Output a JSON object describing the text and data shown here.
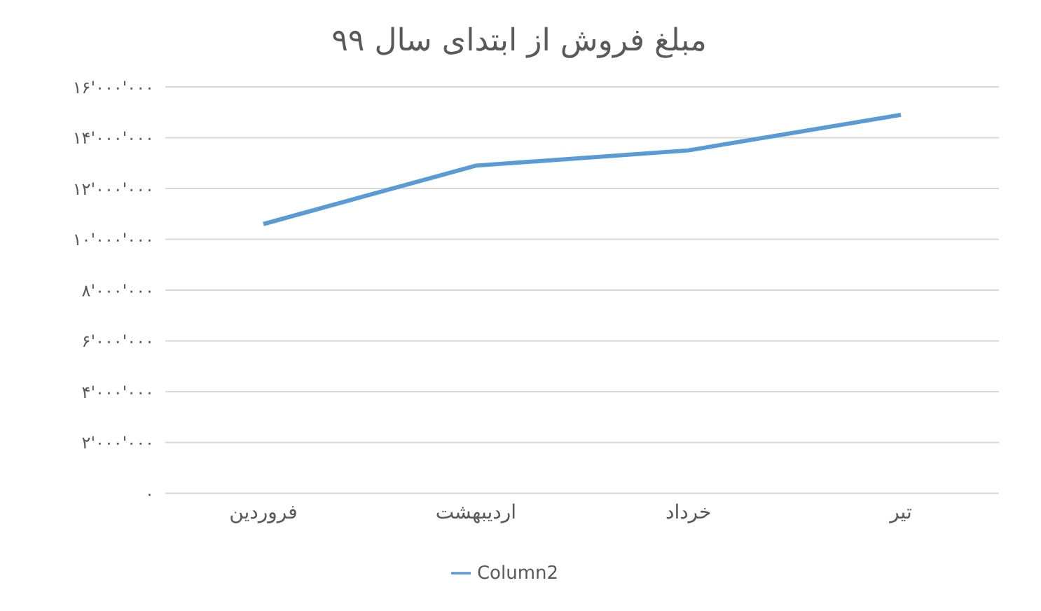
{
  "chart_data": {
    "type": "line",
    "title": "مبلغ فروش از ابتدای سال ۹۹",
    "categories": [
      "فروردین",
      "اردیبهشت",
      "خرداد",
      "تیر"
    ],
    "series": [
      {
        "name": "Column2",
        "color": "#5b9bd5",
        "values": [
          10600000,
          12900000,
          13500000,
          14900000
        ]
      }
    ],
    "ylim": [
      0,
      16000000
    ],
    "yticks": [
      {
        "value": 0,
        "label": "۰"
      },
      {
        "value": 2000000,
        "label": "۲'۰۰۰'۰۰۰"
      },
      {
        "value": 4000000,
        "label": "۴'۰۰۰'۰۰۰"
      },
      {
        "value": 6000000,
        "label": "۶'۰۰۰'۰۰۰"
      },
      {
        "value": 8000000,
        "label": "۸'۰۰۰'۰۰۰"
      },
      {
        "value": 10000000,
        "label": "۱۰'۰۰۰'۰۰۰"
      },
      {
        "value": 12000000,
        "label": "۱۲'۰۰۰'۰۰۰"
      },
      {
        "value": 14000000,
        "label": "۱۴'۰۰۰'۰۰۰"
      },
      {
        "value": 16000000,
        "label": "۱۶'۰۰۰'۰۰۰"
      }
    ],
    "grid": "y",
    "legend": "bottom",
    "marker": "none",
    "line_style": "solid"
  }
}
